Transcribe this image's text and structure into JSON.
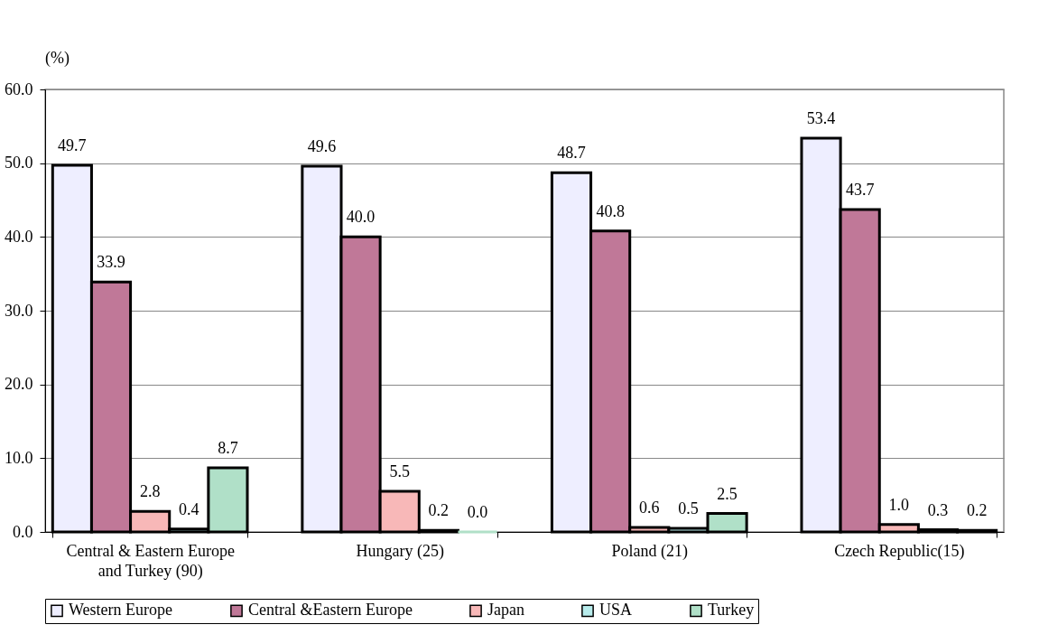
{
  "chart_data": {
    "type": "bar",
    "ylabel": "(%)",
    "categories": [
      "Central & Eastern Europe and Turkey (90)",
      "Hungary (25)",
      "Poland (21)",
      "Czech Republic(15)"
    ],
    "series": [
      {
        "name": "Western Europe",
        "color": "#eeeeff",
        "values": [
          49.7,
          49.6,
          48.7,
          53.4
        ],
        "value_labels": [
          "49.7",
          "49.6",
          "48.7",
          "53.4"
        ]
      },
      {
        "name": "Central &Eastern Europe",
        "color": "#c07898",
        "values": [
          33.9,
          40.0,
          40.8,
          43.7
        ],
        "value_labels": [
          "33.9",
          "40.0",
          "40.8",
          "43.7"
        ]
      },
      {
        "name": "Japan",
        "color": "#f8b8b8",
        "values": [
          2.8,
          5.5,
          0.6,
          1.0
        ],
        "value_labels": [
          "2.8",
          "5.5",
          "0.6",
          "1.0"
        ]
      },
      {
        "name": "USA",
        "color": "#b8ecec",
        "values": [
          0.4,
          0.2,
          0.5,
          0.3
        ],
        "value_labels": [
          "0.4",
          "0.2",
          "0.5",
          "0.3"
        ]
      },
      {
        "name": "Turkey",
        "color": "#b0e0c8",
        "values": [
          8.7,
          0.0,
          2.5,
          0.2
        ],
        "value_labels": [
          "8.7",
          "0.0",
          "2.5",
          "0.2"
        ]
      }
    ],
    "ylim": [
      0,
      60
    ],
    "yticks": [
      {
        "value": 0,
        "label": "0.0"
      },
      {
        "value": 10,
        "label": "10.0"
      },
      {
        "value": 20,
        "label": "20.0"
      },
      {
        "value": 30,
        "label": "30.0"
      },
      {
        "value": 40,
        "label": "40.0"
      },
      {
        "value": 50,
        "label": "50.0"
      },
      {
        "value": 60,
        "label": "60.0"
      }
    ],
    "grid": "y",
    "legend": "bottom"
  }
}
